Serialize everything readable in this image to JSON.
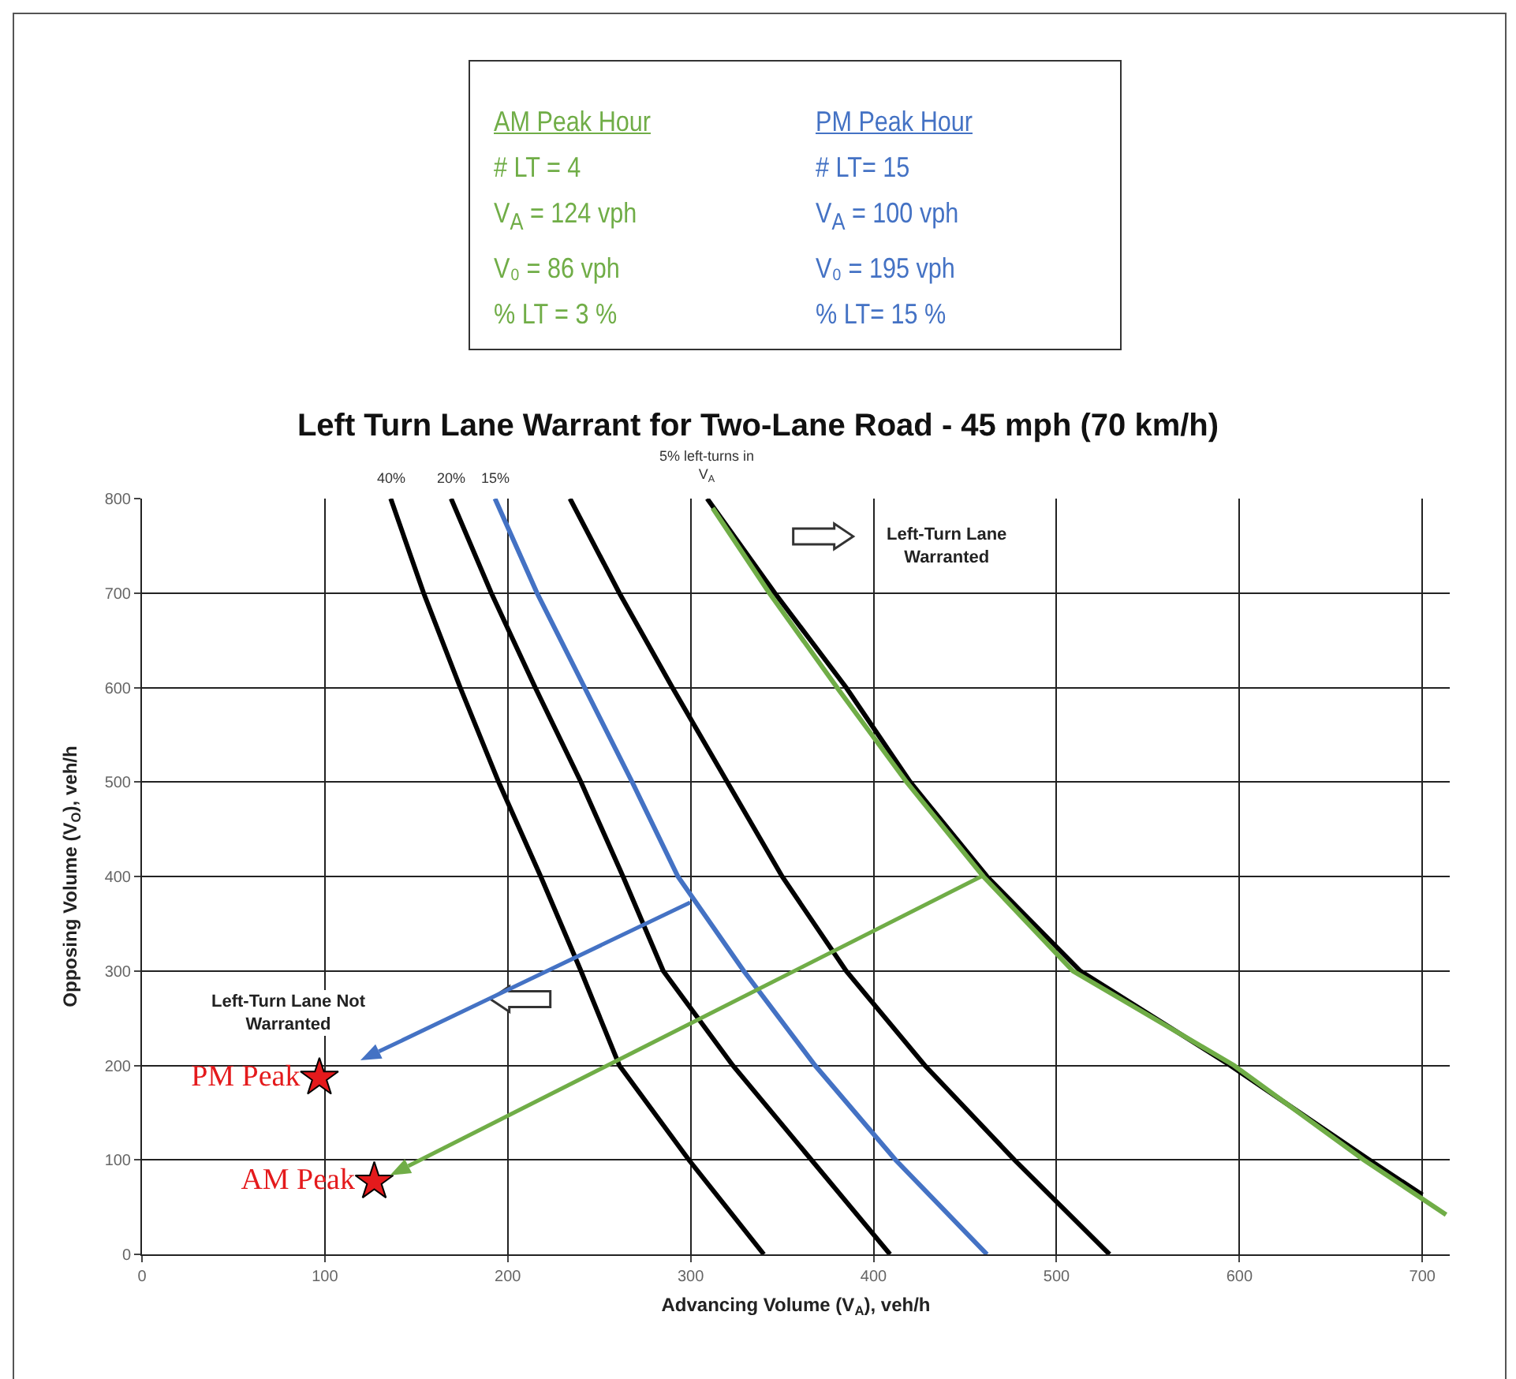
{
  "chart_data": [
    {
      "type": "other",
      "annotations": [
        "AM Peak Hour",
        "# LT = 4",
        "V$_{A}$ = 124 vph",
        "V₀ = 86 vph",
        "% LT = 3 %",
        "PM Peak Hour",
        "# LT= 15",
        "V$_{A}$ = 100 vph",
        "V₀ = 195 vph",
        "% LT= 15 %"
      ]
    },
    {
      "type": "line",
      "title": "Left Turn Lane Warrant for Two-Lane Road - 45 mph (70 km/h)",
      "xlabel": "Advancing Volume (V$_{A}$), veh/h",
      "ylabel": "Opposing Volume (V$_{O}$), veh/h",
      "xlim": [
        0,
        715
      ],
      "xticks": [
        0,
        100,
        200,
        300,
        400,
        500,
        600,
        700
      ],
      "ylim": [
        0,
        800
      ],
      "yticks": [
        0,
        100,
        200,
        300,
        400,
        500,
        600,
        700,
        800
      ],
      "grid": true,
      "legend": false,
      "marker": "none",
      "series": [
        {
          "name": "40%",
          "color": "#000000",
          "x": [
            136,
            154,
            174,
            195,
            218,
            240,
            261,
            299,
            340
          ],
          "values": [
            800,
            700,
            600,
            500,
            400,
            300,
            200,
            100,
            0
          ]
        },
        {
          "name": "20%",
          "color": "#000000",
          "x": [
            169,
            191,
            215,
            240,
            263,
            285,
            323,
            366,
            409
          ],
          "values": [
            800,
            700,
            600,
            500,
            400,
            300,
            200,
            100,
            0
          ]
        },
        {
          "name": "15%",
          "color": "#4472c4",
          "x": [
            193,
            216,
            242,
            268,
            293,
            329,
            368,
            412,
            462
          ],
          "values": [
            800,
            700,
            600,
            500,
            400,
            300,
            200,
            100,
            0
          ]
        },
        {
          "color": "#000000",
          "x": [
            234,
            261,
            290,
            320,
            350,
            385,
            428,
            477,
            529
          ],
          "values": [
            800,
            700,
            600,
            500,
            400,
            300,
            200,
            100,
            0
          ]
        },
        {
          "name": "5% left-turns in V$_{A}$",
          "color": "#000000",
          "x": [
            309,
            346,
            385,
            420,
            462,
            513,
            595,
            671,
            700
          ],
          "values": [
            800,
            700,
            600,
            500,
            400,
            300,
            200,
            100,
            63
          ]
        },
        {
          "color": "#70ad47",
          "x": [
            312,
            343,
            380,
            418,
            460,
            509,
            597,
            668,
            713
          ],
          "values": [
            790,
            700,
            600,
            500,
            400,
            300,
            200,
            100,
            42
          ]
        },
        {
          "name": "PM Peak",
          "type": "scatter",
          "marker": "star",
          "color": "#e41a1c",
          "x": [
            97
          ],
          "values": [
            187
          ]
        },
        {
          "name": "AM Peak",
          "type": "scatter",
          "marker": "star",
          "color": "#e41a1c",
          "x": [
            127
          ],
          "values": [
            77
          ]
        }
      ],
      "annotations": [
        "Left-Turn Lane Warranted",
        "Left-Turn Lane Not Warranted"
      ]
    }
  ]
}
